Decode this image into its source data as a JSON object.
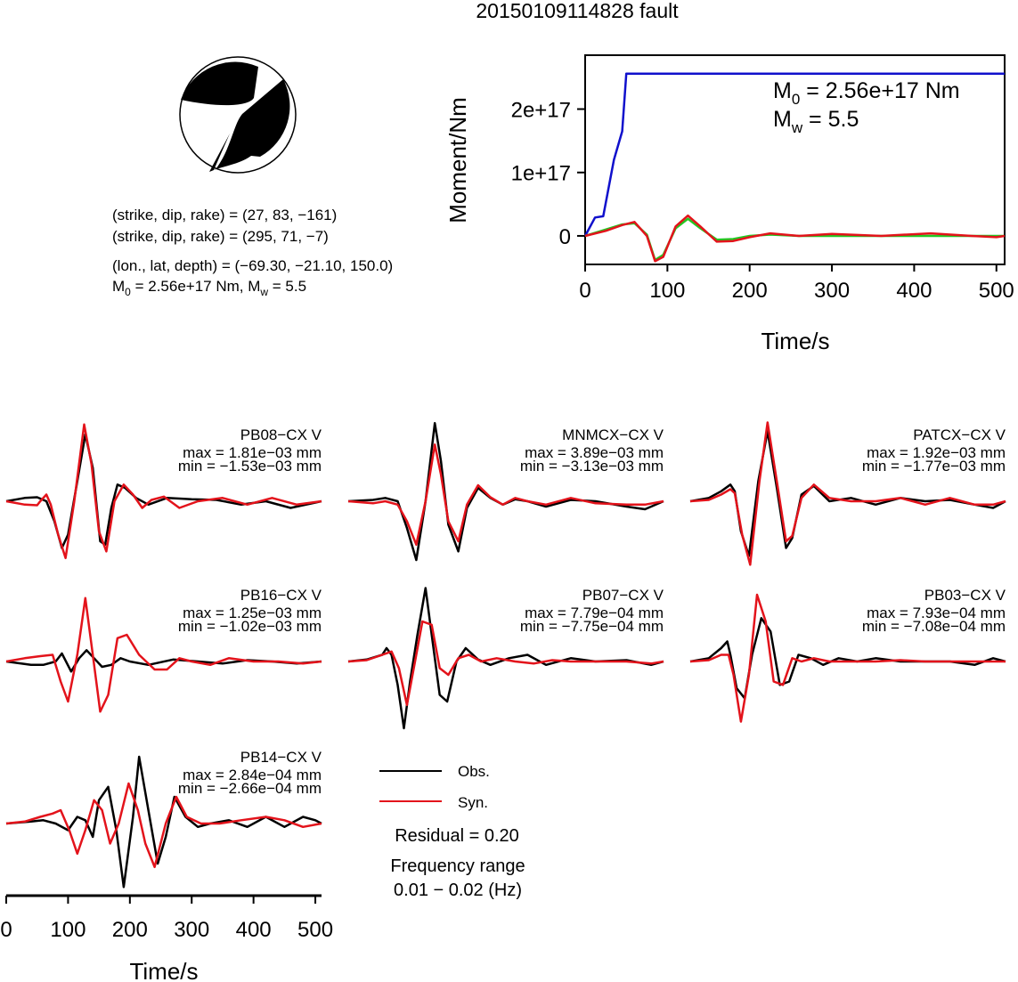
{
  "title": "20150109114828 fault",
  "info": {
    "plane1": "(strike, dip, rake) = (27, 83, −161)",
    "plane2": "(strike, dip, rake) = (295, 71, −7)",
    "location": "(lon., lat, depth) = (−69.30, −21.10, 150.0)",
    "m0_label": "M",
    "m0_sub": "0",
    "m0_rest": " = 2.56e+17 Nm, M",
    "mw_sub": "w",
    "mw_rest": " = 5.5"
  },
  "moment_panel": {
    "annotation_m0": {
      "main": "M",
      "sub": "0",
      "rest": " = 2.56e+17 Nm"
    },
    "annotation_mw": {
      "main": "M",
      "sub": "w",
      "rest": " = 5.5"
    }
  },
  "legend": {
    "obs": "Obs.",
    "syn": "Syn."
  },
  "residual": "Residual = 0.20",
  "frequency_range_label": "Frequency range",
  "frequency_range_value": "0.01 − 0.02 (Hz)",
  "colors": {
    "obs": "#000000",
    "syn": "#e3131b",
    "moment": "#1010cc",
    "green": "#22c822"
  },
  "chart_data": [
    {
      "type": "line",
      "title": "",
      "xlabel": "Time/s",
      "ylabel": "Moment/Nm",
      "xlim": [
        0,
        510
      ],
      "ylim": [
        -4.5e+16,
        2.85e+17
      ],
      "xticks": [
        "0",
        "100",
        "200",
        "300",
        "400",
        "500"
      ],
      "yticks": [
        "0",
        "1e+17",
        "2e+17"
      ],
      "series": [
        {
          "color": "#1010cc",
          "x": [
            0,
            12,
            22,
            35,
            45,
            50,
            510
          ],
          "y": [
            0,
            2.9e+16,
            3.1e+16,
            1.2e+17,
            1.65e+17,
            2.56e+17,
            2.56e+17
          ]
        },
        {
          "color": "#22c822",
          "x": [
            0,
            25,
            45,
            60,
            75,
            85,
            95,
            110,
            125,
            140,
            160,
            180,
            200,
            225,
            260,
            300,
            360,
            420,
            480,
            510
          ],
          "y": [
            0,
            1e+16,
            1.8e+16,
            2e+16,
            2000000000000000.0,
            -3.8e+16,
            -3e+16,
            1.2e+16,
            2.7e+16,
            1.2e+16,
            -6000000000000000.0,
            -5000000000000000.0,
            0.0,
            2000000000000000.0,
            0.0,
            0.0,
            0.0,
            0.0,
            0.0,
            0.0
          ]
        },
        {
          "color": "#e3131b",
          "x": [
            0,
            25,
            45,
            60,
            75,
            85,
            95,
            110,
            125,
            140,
            160,
            180,
            200,
            225,
            260,
            300,
            360,
            420,
            470,
            500,
            510
          ],
          "y": [
            0,
            8000000000000000.0,
            1.7e+16,
            2.2e+16,
            0.0,
            -4e+16,
            -3.3e+16,
            1.5e+16,
            3.2e+16,
            1.5e+16,
            -9000000000000000.0,
            -8000000000000000.0,
            -2000000000000000.0,
            4000000000000000.0,
            0.0,
            3000000000000000.0,
            0.0,
            4000000000000000.0,
            0.0,
            -2000000000000000.0,
            0.0
          ]
        }
      ]
    },
    {
      "type": "line",
      "xlabel": "Time/s",
      "xlim": [
        0,
        510
      ],
      "xticks": [
        "0",
        "100",
        "200",
        "300",
        "400",
        "500"
      ],
      "stations": [
        {
          "name": "PB08−CX V",
          "max": "max = 1.81e−03 mm",
          "min": "min = −1.53e−03 mm",
          "obs": {
            "x": [
              0,
              30,
              50,
              65,
              78,
              90,
              100,
              115,
              128,
              140,
              152,
              160,
              170,
              180,
              192,
              210,
              230,
              260,
              300,
              340,
              380,
              420,
              460,
              510
            ],
            "y": [
              0,
              0.05,
              0.06,
              0,
              -0.3,
              -0.7,
              -0.5,
              0.3,
              1.0,
              0.5,
              -0.6,
              -0.65,
              -0.1,
              0.25,
              0.2,
              0.05,
              -0.05,
              0.05,
              0.03,
              0.02,
              -0.05,
              0.0,
              -0.1,
              0.0
            ]
          },
          "syn": {
            "x": [
              0,
              30,
              50,
              55,
              65,
              72,
              84,
              96,
              110,
              126,
              138,
              150,
              162,
              175,
              190,
              205,
              220,
              235,
              255,
              280,
              310,
              350,
              390,
              430,
              470,
              510
            ],
            "y": [
              0,
              -0.05,
              -0.06,
              0.0,
              0.1,
              -0.05,
              -0.5,
              -0.85,
              0.0,
              1.15,
              0.55,
              -0.45,
              -0.75,
              0.0,
              0.25,
              0.1,
              -0.1,
              0.02,
              0.07,
              -0.1,
              0.0,
              0.05,
              -0.05,
              0.05,
              -0.05,
              0.0
            ]
          }
        },
        {
          "name": "MNMCX−CX V",
          "max": "max = 3.89e−03 mm",
          "min": "min = −3.13e−03 mm",
          "obs": {
            "x": [
              0,
              40,
              60,
              80,
              95,
              110,
              125,
              140,
              150,
              162,
              178,
              192,
              210,
              230,
              250,
              270,
              290,
              320,
              360,
              400,
              450,
              480,
              510
            ],
            "y": [
              0,
              0.02,
              0.05,
              0.0,
              -0.4,
              -0.88,
              0.0,
              1.17,
              0.6,
              -0.35,
              -0.75,
              -0.1,
              0.2,
              0.05,
              -0.05,
              0.03,
              0.0,
              -0.08,
              0.02,
              0.0,
              -0.08,
              -0.12,
              0.0
            ]
          },
          "syn": {
            "x": [
              0,
              40,
              60,
              80,
              95,
              110,
              125,
              140,
              150,
              162,
              178,
              192,
              210,
              230,
              250,
              270,
              290,
              320,
              360,
              400,
              450,
              480,
              510
            ],
            "y": [
              0,
              -0.03,
              0.0,
              -0.05,
              -0.3,
              -0.65,
              0.0,
              0.85,
              0.4,
              -0.3,
              -0.6,
              -0.05,
              0.24,
              0.06,
              -0.05,
              0.05,
              0.0,
              -0.05,
              0.05,
              -0.03,
              -0.05,
              -0.05,
              0.0
            ]
          }
        },
        {
          "name": "PATCX−CX V",
          "max": "max = 1.92e−03 mm",
          "min": "min = −1.77e−03 mm",
          "obs": {
            "x": [
              0,
              30,
              50,
              65,
              72,
              82,
              95,
              110,
              125,
              140,
              155,
              165,
              180,
              200,
              225,
              260,
              300,
              340,
              380,
              420,
              460,
              490,
              510
            ],
            "y": [
              0,
              0.05,
              0.15,
              0.25,
              0.15,
              -0.45,
              -0.82,
              0.3,
              1.05,
              0.2,
              -0.7,
              -0.55,
              0.1,
              0.23,
              0.0,
              0.05,
              -0.05,
              0.05,
              0.0,
              0.02,
              -0.05,
              -0.1,
              0.0
            ]
          },
          "syn": {
            "x": [
              0,
              30,
              50,
              65,
              72,
              84,
              97,
              112,
              125,
              140,
              155,
              165,
              180,
              200,
              225,
              260,
              300,
              340,
              380,
              420,
              460,
              490,
              510
            ],
            "y": [
              0,
              0.02,
              0.1,
              0.18,
              0.12,
              -0.5,
              -0.95,
              0.3,
              1.18,
              0.3,
              -0.6,
              -0.52,
              0.05,
              0.25,
              0.05,
              0.0,
              0.0,
              0.05,
              -0.05,
              0.05,
              -0.05,
              -0.05,
              0.0
            ]
          }
        },
        {
          "name": "PB16−CX V",
          "max": "max = 1.25e−03 mm",
          "min": "min = −1.02e−03 mm",
          "obs": {
            "x": [
              0,
              40,
              60,
              80,
              90,
              105,
              118,
              130,
              142,
              155,
              170,
              185,
              200,
              230,
              270,
              310,
              350,
              390,
              430,
              470,
              510
            ],
            "y": [
              0,
              -0.05,
              -0.05,
              0.0,
              0.12,
              -0.15,
              0.05,
              0.17,
              0.05,
              -0.08,
              -0.05,
              0.05,
              0.0,
              -0.05,
              0.03,
              0.0,
              -0.03,
              0.02,
              0.0,
              -0.03,
              0.0
            ]
          },
          "syn": {
            "x": [
              0,
              30,
              55,
              75,
              88,
              100,
              115,
              128,
              140,
              152,
              165,
              180,
              195,
              215,
              240,
              260,
              280,
              300,
              330,
              360,
              400,
              440,
              480,
              510
            ],
            "y": [
              0,
              0.05,
              0.08,
              0.1,
              -0.3,
              -0.6,
              0.1,
              0.95,
              0.1,
              -0.75,
              -0.5,
              0.35,
              0.4,
              0.1,
              -0.12,
              -0.12,
              0.05,
              0.0,
              -0.05,
              0.05,
              0.0,
              0.0,
              -0.03,
              0.0
            ]
          }
        },
        {
          "name": "PB07−CX V",
          "max": "max = 7.79e−04 mm",
          "min": "min = −7.75e−04 mm",
          "obs": {
            "x": [
              0,
              30,
              55,
              62,
              70,
              80,
              90,
              100,
              112,
              125,
              135,
              148,
              160,
              175,
              190,
              210,
              230,
              260,
              290,
              320,
              360,
              400,
              450,
              490,
              510
            ],
            "y": [
              0,
              0.03,
              0.1,
              0.2,
              0.1,
              -0.35,
              -1.0,
              -0.3,
              0.4,
              1.1,
              0.4,
              -0.5,
              -0.6,
              0.0,
              0.2,
              0.03,
              -0.05,
              0.05,
              0.1,
              -0.05,
              0.05,
              0.0,
              0.02,
              -0.05,
              0.0
            ]
          },
          "syn": {
            "x": [
              0,
              30,
              55,
              70,
              82,
              95,
              108,
              120,
              135,
              148,
              162,
              178,
              195,
              215,
              240,
              270,
              300,
              330,
              360,
              400,
              450,
              490,
              510
            ],
            "y": [
              0,
              0.02,
              0.1,
              0.15,
              -0.1,
              -0.65,
              0.0,
              0.6,
              0.55,
              -0.1,
              -0.2,
              0.05,
              0.1,
              0.0,
              0.05,
              0.0,
              -0.03,
              0.02,
              0.0,
              0.0,
              0.0,
              -0.03,
              0.0
            ]
          }
        },
        {
          "name": "PB03−CX V",
          "max": "max = 7.93e−04 mm",
          "min": "min = −7.08e−04 mm",
          "obs": {
            "x": [
              0,
              30,
              50,
              60,
              65,
              75,
              88,
              100,
              115,
              130,
              145,
              160,
              175,
              195,
              215,
              240,
              270,
              300,
              340,
              380,
              420,
              460,
              490,
              510
            ],
            "y": [
              0,
              0.05,
              0.2,
              0.3,
              0.1,
              -0.4,
              -0.55,
              0.1,
              0.65,
              0.45,
              -0.35,
              -0.3,
              0.1,
              0.05,
              -0.05,
              0.05,
              0.0,
              0.05,
              0.0,
              0.0,
              0.0,
              -0.05,
              0.05,
              0.0
            ]
          },
          "syn": {
            "x": [
              0,
              30,
              50,
              62,
              70,
              82,
              95,
              108,
              122,
              135,
              150,
              165,
              180,
              200,
              225,
              260,
              300,
              340,
              380,
              420,
              460,
              490,
              510
            ],
            "y": [
              0,
              0.02,
              0.1,
              0.1,
              -0.2,
              -0.9,
              -0.2,
              1.0,
              0.6,
              -0.3,
              -0.35,
              0.05,
              0.0,
              0.05,
              0.0,
              0.0,
              0.0,
              0.02,
              0.0,
              0.0,
              0.0,
              0.0,
              0.0
            ]
          }
        },
        {
          "name": "PB14−CX V",
          "max": "max = 2.84e−04 mm",
          "min": "min = −2.66e−04 mm",
          "obs": {
            "x": [
              0,
              40,
              60,
              80,
              100,
              115,
              128,
              140,
              150,
              165,
              178,
              190,
              205,
              215,
              230,
              245,
              258,
              272,
              290,
              310,
              330,
              360,
              390,
              420,
              450,
              480,
              500,
              510
            ],
            "y": [
              0,
              0.03,
              0.05,
              0.0,
              -0.1,
              0.1,
              0.05,
              -0.2,
              0.35,
              0.55,
              -0.1,
              -0.95,
              0.1,
              1.0,
              0.2,
              -0.6,
              -0.2,
              0.4,
              0.1,
              -0.05,
              0.0,
              0.05,
              -0.05,
              0.1,
              -0.05,
              0.1,
              0.05,
              0.0
            ]
          },
          "syn": {
            "x": [
              0,
              30,
              55,
              75,
              88,
              102,
              115,
              128,
              142,
              155,
              168,
              182,
              198,
              213,
              225,
              240,
              258,
              275,
              292,
              315,
              345,
              380,
              420,
              450,
              480,
              510
            ],
            "y": [
              0,
              0.03,
              0.1,
              0.15,
              0.2,
              -0.1,
              -0.45,
              -0.1,
              0.35,
              0.2,
              -0.3,
              0.0,
              0.6,
              0.2,
              -0.3,
              -0.65,
              0.0,
              0.4,
              0.1,
              0.0,
              0.0,
              0.05,
              0.1,
              0.05,
              -0.05,
              0.0
            ]
          }
        }
      ]
    }
  ]
}
